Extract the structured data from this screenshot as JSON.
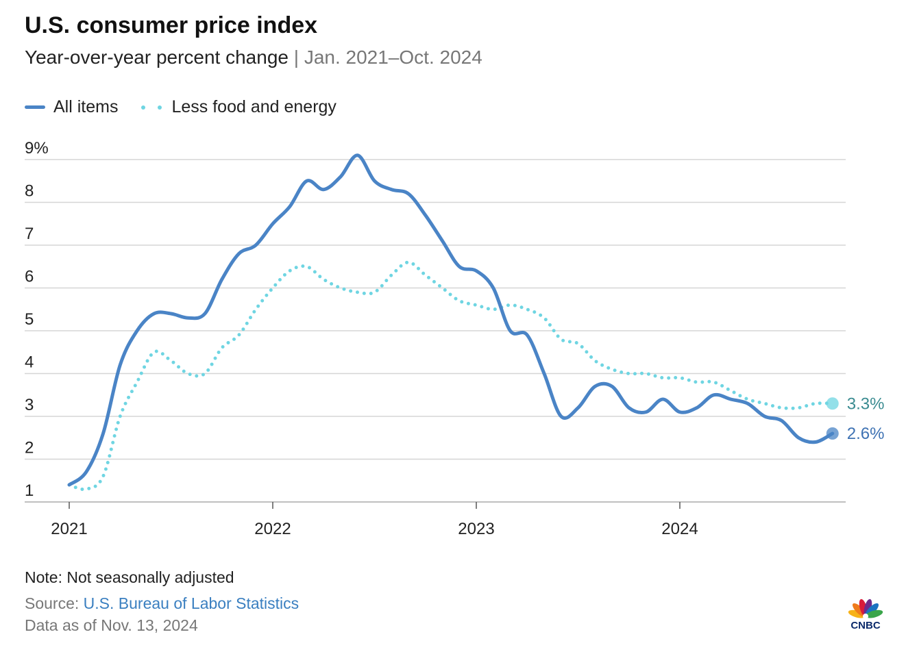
{
  "header": {
    "title": "U.S. consumer price index",
    "subtitle": "Year-over-year percent change",
    "separator": "|",
    "date_range": "Jan. 2021–Oct. 2024"
  },
  "footer": {
    "note": "Note: Not seasonally adjusted",
    "source_label": "Source:",
    "source_link": "U.S. Bureau of Labor Statistics",
    "data_as_of": "Data as of Nov. 13, 2024",
    "logo_text": "CNBC"
  },
  "colors": {
    "all_items": "#4a84c6",
    "core": "#6fd5e2",
    "all_items_label": "#3e72b3",
    "core_label": "#3b8c91",
    "grid": "#d5d5d5"
  },
  "chart_data": {
    "type": "line",
    "title": "U.S. consumer price index",
    "xlabel": "",
    "ylabel": "Year-over-year percent change",
    "ylim": [
      1,
      9
    ],
    "y_ticks": [
      {
        "value": 9,
        "label": "9%"
      },
      {
        "value": 8,
        "label": "8"
      },
      {
        "value": 7,
        "label": "7"
      },
      {
        "value": 6,
        "label": "6"
      },
      {
        "value": 5,
        "label": "5"
      },
      {
        "value": 4,
        "label": "4"
      },
      {
        "value": 3,
        "label": "3"
      },
      {
        "value": 2,
        "label": "2"
      },
      {
        "value": 1,
        "label": "1"
      }
    ],
    "x_ticks": [
      {
        "month_index": 0,
        "label": "2021"
      },
      {
        "month_index": 12,
        "label": "2022"
      },
      {
        "month_index": 24,
        "label": "2023"
      },
      {
        "month_index": 36,
        "label": "2024"
      }
    ],
    "x_start": "Jan. 2021",
    "x_end": "Oct. 2024",
    "legend_position": "top-left",
    "grid": true,
    "series": [
      {
        "name": "All items",
        "style": "solid",
        "end_label": "2.6%",
        "values": [
          1.4,
          1.7,
          2.6,
          4.2,
          5.0,
          5.4,
          5.4,
          5.3,
          5.4,
          6.2,
          6.8,
          7.0,
          7.5,
          7.9,
          8.5,
          8.3,
          8.6,
          9.1,
          8.5,
          8.3,
          8.2,
          7.7,
          7.1,
          6.5,
          6.4,
          6.0,
          5.0,
          4.9,
          4.0,
          3.0,
          3.2,
          3.7,
          3.7,
          3.2,
          3.1,
          3.4,
          3.1,
          3.2,
          3.5,
          3.4,
          3.3,
          3.0,
          2.9,
          2.5,
          2.4,
          2.6
        ]
      },
      {
        "name": "Less food and energy",
        "style": "dotted",
        "end_label": "3.3%",
        "values": [
          1.4,
          1.3,
          1.6,
          3.0,
          3.8,
          4.5,
          4.3,
          4.0,
          4.0,
          4.6,
          4.9,
          5.5,
          6.0,
          6.4,
          6.5,
          6.2,
          6.0,
          5.9,
          5.9,
          6.3,
          6.6,
          6.3,
          6.0,
          5.7,
          5.6,
          5.5,
          5.6,
          5.5,
          5.3,
          4.8,
          4.7,
          4.3,
          4.1,
          4.0,
          4.0,
          3.9,
          3.9,
          3.8,
          3.8,
          3.6,
          3.4,
          3.3,
          3.2,
          3.2,
          3.3,
          3.3
        ]
      }
    ]
  }
}
